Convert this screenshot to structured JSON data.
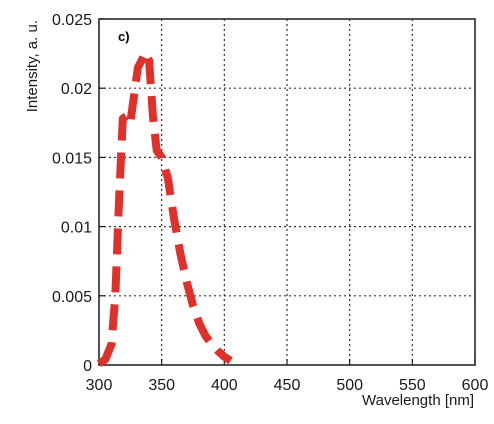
{
  "chart_data": {
    "type": "line",
    "panel_label": "c)",
    "xlabel": "Wavelength [nm]",
    "ylabel": "Intensity, a. u.",
    "xlim": [
      300,
      600
    ],
    "ylim": [
      0,
      0.025
    ],
    "x_ticks": [
      300,
      350,
      400,
      450,
      500,
      550,
      600
    ],
    "x_tick_labels": [
      "300",
      "350",
      "400",
      "450",
      "500",
      "550",
      "600"
    ],
    "y_ticks": [
      0,
      0.005,
      0.01,
      0.015,
      0.02,
      0.025
    ],
    "y_tick_labels": [
      "0",
      "0.005",
      "0.01",
      "0.015",
      "0.02",
      "0.025"
    ],
    "grid": true,
    "series": [
      {
        "color": "#e0302a",
        "line_style": "dashed",
        "x": [
          300,
          305,
          310,
          313,
          316,
          319,
          322,
          325,
          328,
          331,
          334,
          337,
          340,
          343,
          346,
          350,
          355,
          360,
          365,
          370,
          375,
          380,
          385,
          390,
          395,
          400,
          405
        ],
        "y": [
          0.0001,
          0.0004,
          0.0015,
          0.005,
          0.012,
          0.0178,
          0.018,
          0.0175,
          0.0195,
          0.0215,
          0.022,
          0.0226,
          0.022,
          0.018,
          0.0155,
          0.015,
          0.0135,
          0.0105,
          0.008,
          0.006,
          0.0043,
          0.003,
          0.0021,
          0.0015,
          0.001,
          0.0006,
          0.0003
        ]
      }
    ]
  }
}
